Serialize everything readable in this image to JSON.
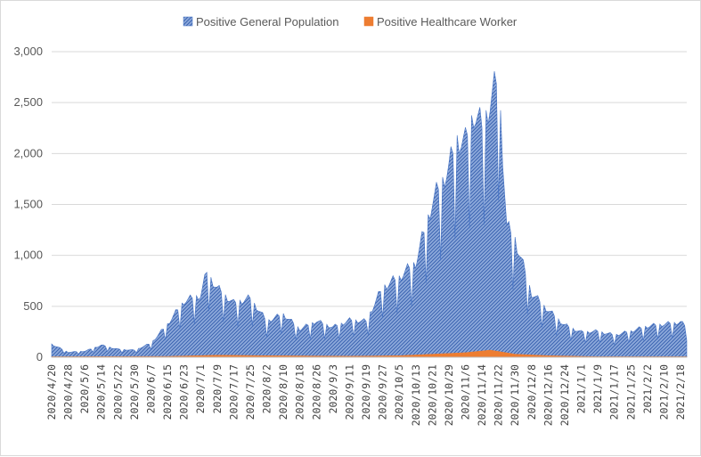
{
  "chart_data": {
    "type": "area",
    "title": "",
    "xlabel": "",
    "ylabel": "",
    "ylim": [
      0,
      3000
    ],
    "yticks": [
      0,
      500,
      1000,
      1500,
      2000,
      2500,
      3000
    ],
    "ytick_labels": [
      "0",
      "500",
      "1,000",
      "1,500",
      "2,000",
      "2,500",
      "3,000"
    ],
    "grid": true,
    "legend_position": "top",
    "x_start": "2020-04-20",
    "x_end": "2021-02-21",
    "x_tick_labels": [
      "2020/4/20",
      "2020/4/28",
      "2020/5/6",
      "2020/5/14",
      "2020/5/22",
      "2020/5/30",
      "2020/6/7",
      "2020/6/15",
      "2020/6/23",
      "2020/7/1",
      "2020/7/9",
      "2020/7/17",
      "2020/7/25",
      "2020/8/2",
      "2020/8/10",
      "2020/8/18",
      "2020/8/26",
      "2020/9/3",
      "2020/9/11",
      "2020/9/19",
      "2020/9/27",
      "2020/10/5",
      "2020/10/13",
      "2020/10/21",
      "2020/10/29",
      "2020/11/6",
      "2020/11/14",
      "2020/11/22",
      "2020/11/30",
      "2020/12/8",
      "2020/12/16",
      "2020/12/24",
      "2021/1/1",
      "2021/1/9",
      "2021/1/17",
      "2021/1/25",
      "2021/2/2",
      "2021/2/10",
      "2021/2/18"
    ],
    "series": [
      {
        "name": "Positive General Population",
        "color": "#4472c4",
        "key_points": [
          [
            "2020-04-20",
            130
          ],
          [
            "2020-04-28",
            50
          ],
          [
            "2020-05-06",
            60
          ],
          [
            "2020-05-14",
            120
          ],
          [
            "2020-05-22",
            80
          ],
          [
            "2020-05-30",
            70
          ],
          [
            "2020-06-07",
            140
          ],
          [
            "2020-06-15",
            330
          ],
          [
            "2020-06-23",
            560
          ],
          [
            "2020-07-01",
            620
          ],
          [
            "2020-07-04",
            850
          ],
          [
            "2020-07-09",
            690
          ],
          [
            "2020-07-17",
            540
          ],
          [
            "2020-07-25",
            590
          ],
          [
            "2020-08-02",
            360
          ],
          [
            "2020-08-10",
            430
          ],
          [
            "2020-08-18",
            280
          ],
          [
            "2020-08-26",
            360
          ],
          [
            "2020-09-03",
            300
          ],
          [
            "2020-09-11",
            370
          ],
          [
            "2020-09-19",
            360
          ],
          [
            "2020-09-27",
            700
          ],
          [
            "2020-10-05",
            800
          ],
          [
            "2020-10-13",
            950
          ],
          [
            "2020-10-21",
            1550
          ],
          [
            "2020-10-29",
            1900
          ],
          [
            "2020-11-02",
            2180
          ],
          [
            "2020-11-06",
            2150
          ],
          [
            "2020-11-10",
            2450
          ],
          [
            "2020-11-14",
            2300
          ],
          [
            "2020-11-18",
            2550
          ],
          [
            "2020-11-22",
            2800
          ],
          [
            "2020-11-26",
            1300
          ],
          [
            "2020-11-30",
            1180
          ],
          [
            "2020-12-08",
            640
          ],
          [
            "2020-12-16",
            470
          ],
          [
            "2020-12-24",
            320
          ],
          [
            "2021-01-01",
            250
          ],
          [
            "2021-01-09",
            260
          ],
          [
            "2021-01-17",
            220
          ],
          [
            "2021-01-25",
            260
          ],
          [
            "2021-02-02",
            310
          ],
          [
            "2021-02-10",
            330
          ],
          [
            "2021-02-18",
            350
          ],
          [
            "2021-02-21",
            300
          ]
        ]
      },
      {
        "name": "Positive Healthcare Worker",
        "color": "#ed7d31",
        "key_points": [
          [
            "2020-04-20",
            5
          ],
          [
            "2020-06-15",
            8
          ],
          [
            "2020-07-09",
            20
          ],
          [
            "2020-08-02",
            15
          ],
          [
            "2020-09-11",
            10
          ],
          [
            "2020-10-05",
            15
          ],
          [
            "2020-10-21",
            30
          ],
          [
            "2020-11-06",
            45
          ],
          [
            "2020-11-18",
            70
          ],
          [
            "2020-11-30",
            30
          ],
          [
            "2020-12-16",
            15
          ],
          [
            "2021-01-09",
            5
          ],
          [
            "2021-02-21",
            5
          ]
        ]
      }
    ]
  }
}
